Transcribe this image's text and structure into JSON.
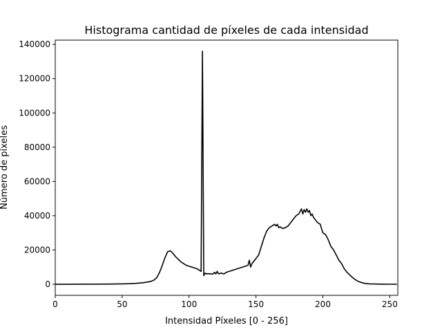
{
  "chart_data": {
    "type": "line",
    "title": "Histograma cantidad de píxeles de cada intensidad",
    "xlabel": "Intensidad Píxeles [0 - 256]",
    "ylabel": "Número de píxeles",
    "xlim": [
      0,
      256
    ],
    "ylim": [
      -6500,
      142500
    ],
    "grid": false,
    "line_color": "#000000",
    "x_ticks": [
      0,
      50,
      100,
      150,
      200,
      250
    ],
    "x_tick_labels": [
      "0",
      "50",
      "100",
      "150",
      "200",
      "250"
    ],
    "y_ticks": [
      0,
      20000,
      40000,
      60000,
      80000,
      100000,
      120000,
      140000
    ],
    "y_tick_labels": [
      "0",
      "20000",
      "40000",
      "60000",
      "80000",
      "100000",
      "120000",
      "140000"
    ],
    "series": [
      {
        "x": [
          0,
          10,
          20,
          30,
          40,
          50,
          55,
          60,
          65,
          70,
          72,
          74,
          76,
          78,
          80,
          82,
          84,
          86,
          88,
          90,
          92,
          94,
          96,
          98,
          100,
          102,
          104,
          106,
          108,
          109,
          110,
          111,
          112,
          113,
          114,
          116,
          118,
          119,
          120,
          121,
          122,
          124,
          126,
          128,
          130,
          132,
          134,
          136,
          138,
          140,
          142,
          144,
          145,
          146,
          147,
          148,
          150,
          152,
          154,
          156,
          158,
          160,
          162,
          164,
          165,
          166,
          167,
          168,
          170,
          172,
          174,
          176,
          178,
          180,
          182,
          184,
          185,
          186,
          187,
          188,
          189,
          190,
          191,
          192,
          193,
          194,
          196,
          198,
          200,
          202,
          204,
          206,
          208,
          210,
          212,
          214,
          216,
          218,
          220,
          222,
          224,
          226,
          228,
          230,
          232,
          235,
          240,
          245,
          250,
          255
        ],
        "y": [
          0,
          0,
          20,
          50,
          100,
          200,
          300,
          500,
          800,
          1400,
          1800,
          2500,
          4000,
          7000,
          11000,
          15500,
          19000,
          19500,
          18000,
          16000,
          14500,
          13000,
          12000,
          11000,
          10500,
          10000,
          9500,
          9000,
          8000,
          7500,
          136000,
          5000,
          6500,
          6000,
          6200,
          6000,
          6000,
          7000,
          6000,
          7500,
          6000,
          6500,
          6000,
          7000,
          7500,
          8000,
          8500,
          9000,
          9500,
          10000,
          10500,
          11000,
          14000,
          10000,
          12000,
          13000,
          15000,
          17000,
          22000,
          27000,
          31000,
          33000,
          34000,
          35000,
          34000,
          35000,
          33000,
          33500,
          32500,
          33000,
          34000,
          36000,
          38000,
          40000,
          41000,
          44000,
          41000,
          43500,
          42000,
          44000,
          42000,
          43000,
          40000,
          41000,
          39000,
          38000,
          36000,
          35000,
          30000,
          29000,
          26000,
          22000,
          20000,
          17000,
          14000,
          12000,
          9000,
          7000,
          5500,
          4000,
          2800,
          1800,
          1200,
          700,
          400,
          200,
          80,
          30,
          10,
          0
        ]
      }
    ]
  }
}
